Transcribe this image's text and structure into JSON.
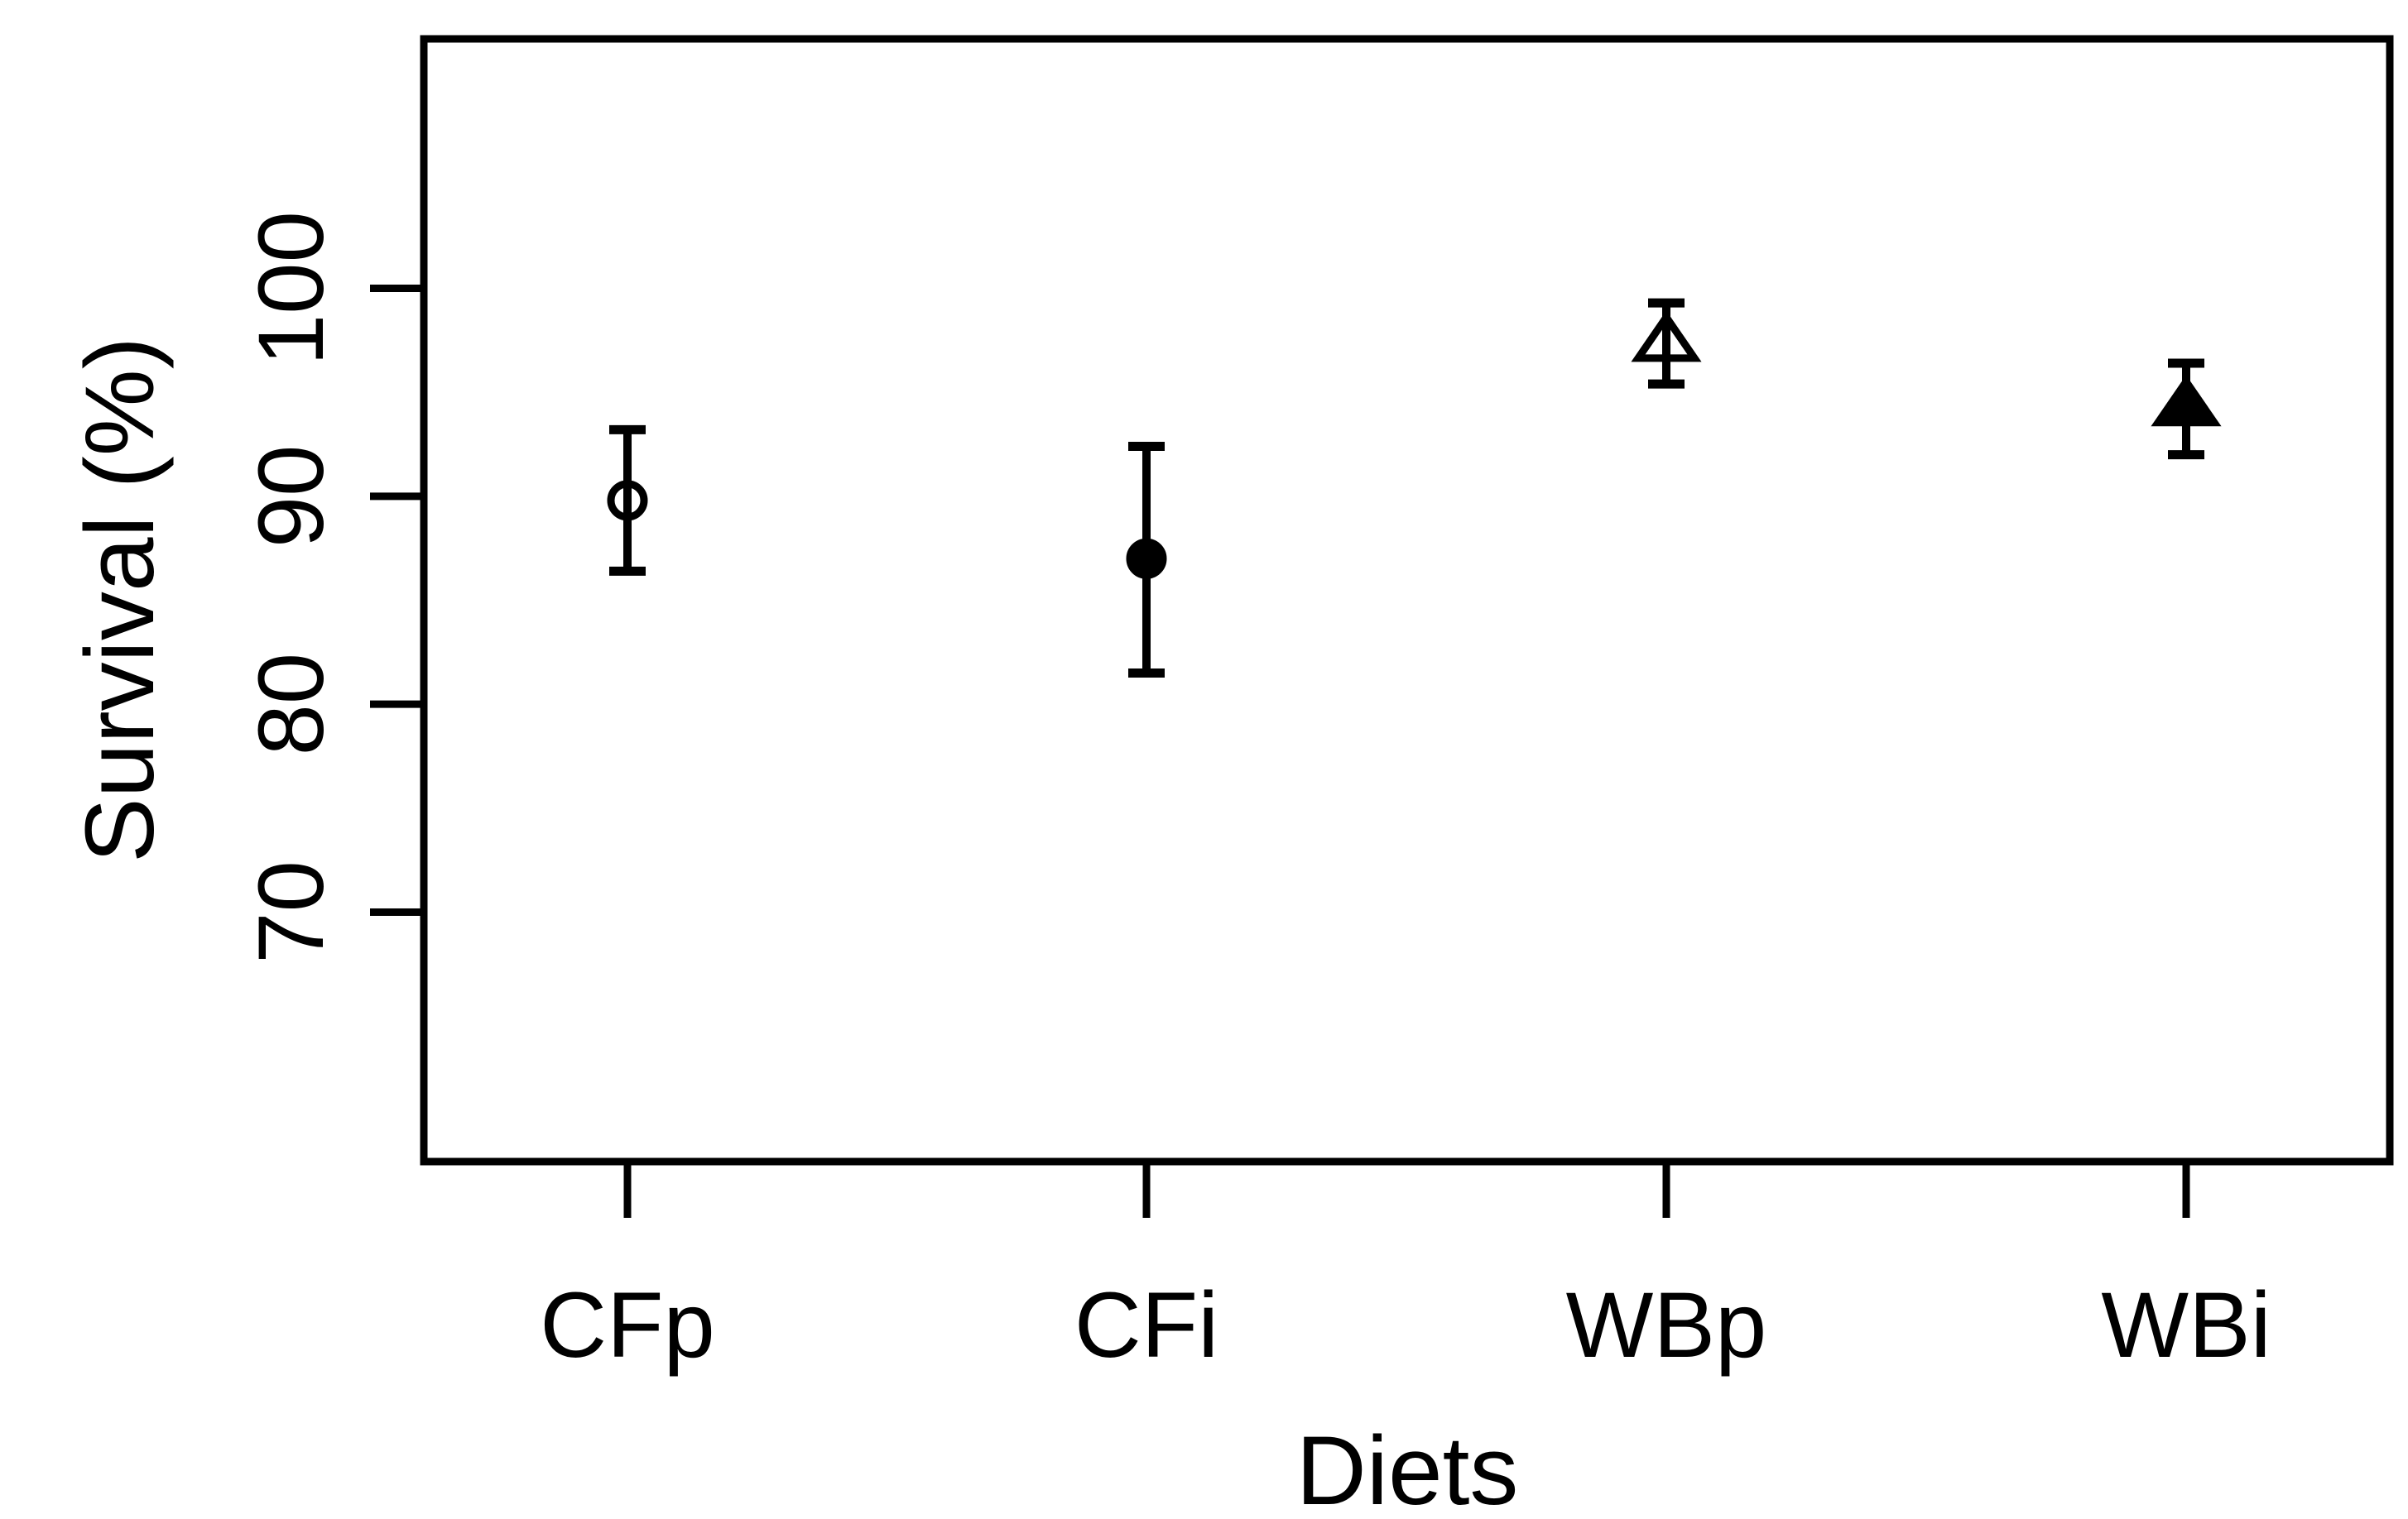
{
  "figure": {
    "background": "#ffffff",
    "foreground": "#000000"
  },
  "chart_data": {
    "type": "scatter",
    "title": "",
    "xlabel": "Diets",
    "ylabel": "Survival (%)",
    "categories": [
      "CFp",
      "CFi",
      "WBp",
      "WBi"
    ],
    "series": [
      {
        "name": "CFp",
        "marker": "open-circle",
        "mean": 89.8,
        "upper": 93.2,
        "lower": 86.4
      },
      {
        "name": "CFi",
        "marker": "filled-circle",
        "mean": 87.0,
        "upper": 92.4,
        "lower": 81.5
      },
      {
        "name": "WBp",
        "marker": "open-triangle",
        "mean": 97.3,
        "upper": 99.3,
        "lower": 95.4
      },
      {
        "name": "WBi",
        "marker": "filled-triangle",
        "mean": 94.2,
        "upper": 96.4,
        "lower": 92.0
      }
    ],
    "yticks": [
      70,
      80,
      90,
      100
    ],
    "ylim": [
      58,
      112
    ],
    "grid": false,
    "legend": null,
    "errorbars": true,
    "colors": {
      "points": "#000000",
      "axis": "#000000",
      "background": "#ffffff"
    }
  }
}
